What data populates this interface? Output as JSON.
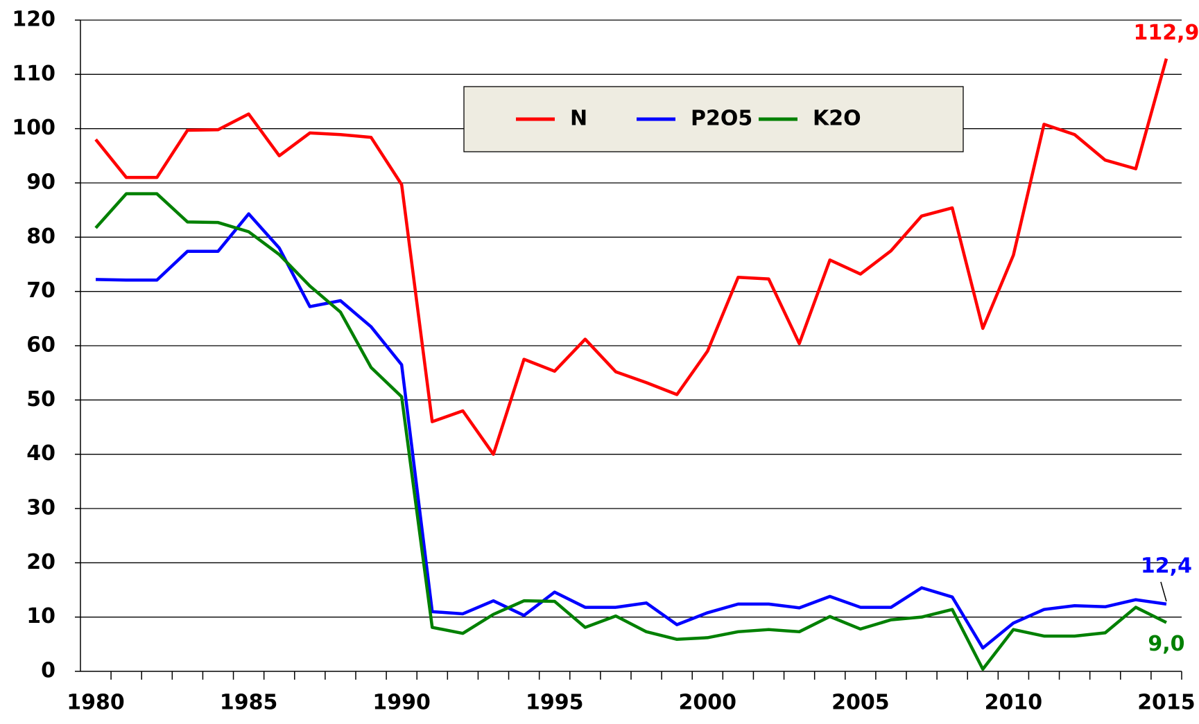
{
  "chart_data": {
    "type": "line",
    "categories": [
      "1980",
      null,
      null,
      null,
      null,
      "1985",
      null,
      null,
      null,
      null,
      "1990",
      null,
      null,
      null,
      null,
      "1995",
      null,
      null,
      null,
      null,
      "2000",
      null,
      null,
      null,
      null,
      "2005",
      null,
      null,
      null,
      null,
      "2010",
      null,
      null,
      null,
      null,
      "2015"
    ],
    "series": [
      {
        "name": "N",
        "color": "#ff0000",
        "values": [
          98,
          91,
          91,
          99.7,
          99.8,
          102.7,
          95,
          99.2,
          98.9,
          98.4,
          89.7,
          46,
          48,
          40,
          57.5,
          55.3,
          61.2,
          55.2,
          53.2,
          51,
          59,
          72.6,
          72.3,
          60.4,
          75.8,
          73.2,
          77.5,
          83.9,
          85.4,
          63.2,
          76.7,
          100.8,
          98.9,
          94.2,
          92.6,
          112.9
        ],
        "value_labels": [
          null,
          null,
          null,
          null,
          null,
          null,
          null,
          null,
          null,
          null,
          null,
          null,
          null,
          null,
          null,
          null,
          null,
          null,
          null,
          null,
          null,
          null,
          null,
          null,
          null,
          null,
          null,
          null,
          null,
          null,
          null,
          null,
          null,
          null,
          null,
          "112,9"
        ]
      },
      {
        "name": "P2O5",
        "color": "#0000ff",
        "values": [
          72.2,
          72.1,
          72.1,
          77.4,
          77.4,
          84.3,
          78,
          67.2,
          68.3,
          63.5,
          56.5,
          11,
          10.6,
          13,
          10.3,
          14.6,
          11.8,
          11.8,
          12.6,
          8.6,
          10.8,
          12.4,
          12.4,
          11.7,
          13.8,
          11.8,
          11.8,
          15.4,
          13.7,
          4.3,
          8.9,
          11.4,
          12.1,
          11.9,
          13.2,
          12.4
        ],
        "value_labels": [
          null,
          null,
          null,
          null,
          null,
          null,
          null,
          null,
          null,
          null,
          null,
          null,
          null,
          null,
          null,
          null,
          null,
          null,
          null,
          null,
          null,
          null,
          null,
          null,
          null,
          null,
          null,
          null,
          null,
          null,
          null,
          null,
          null,
          null,
          null,
          "12,4"
        ]
      },
      {
        "name": "K2O",
        "color": "#008000",
        "values": [
          81.7,
          88,
          88,
          82.8,
          82.7,
          81,
          76.8,
          71,
          66.2,
          56,
          50.6,
          8.1,
          7,
          10.5,
          13,
          12.9,
          8.1,
          10.2,
          7.3,
          5.9,
          6.2,
          7.3,
          7.7,
          7.3,
          10.1,
          7.8,
          9.5,
          10,
          11.4,
          0.4,
          7.7,
          6.5,
          6.5,
          7.1,
          11.8,
          9
        ],
        "value_labels": [
          null,
          null,
          null,
          null,
          null,
          null,
          null,
          null,
          null,
          null,
          null,
          null,
          null,
          null,
          null,
          null,
          null,
          null,
          null,
          null,
          null,
          null,
          null,
          null,
          null,
          null,
          null,
          null,
          null,
          null,
          null,
          null,
          null,
          null,
          null,
          "9,0"
        ]
      }
    ],
    "ylim": [
      0,
      120
    ],
    "yticks": [
      0,
      10,
      20,
      30,
      40,
      50,
      60,
      70,
      80,
      90,
      100,
      110,
      120
    ],
    "grid": true,
    "legend": "top"
  }
}
